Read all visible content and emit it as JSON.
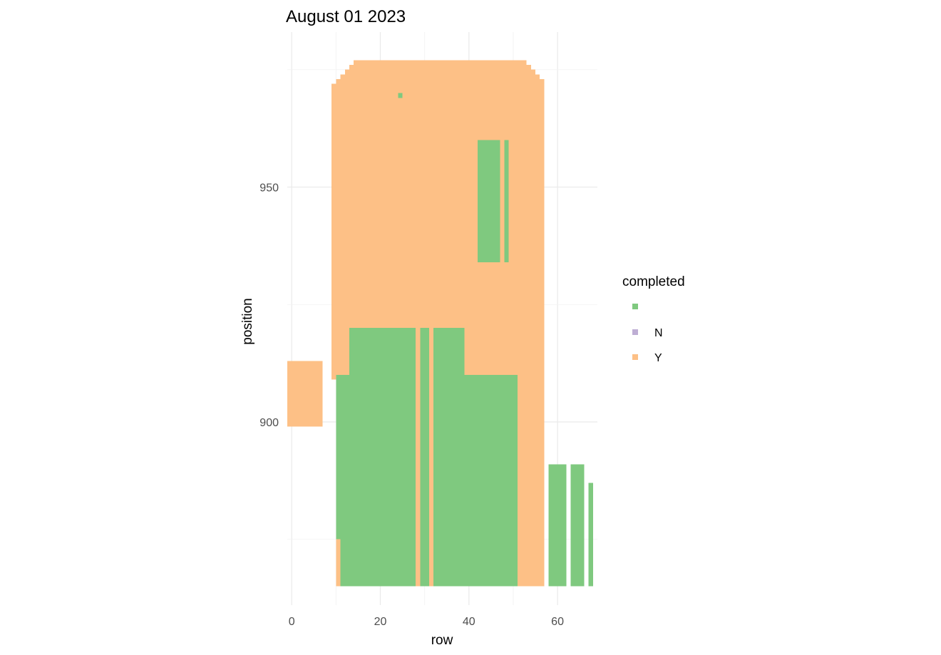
{
  "chart_data": {
    "type": "heatmap",
    "title": "August 01 2023",
    "xlabel": "row",
    "ylabel": "position",
    "xlim": [
      -1,
      69
    ],
    "ylim": [
      861,
      983
    ],
    "x_ticks": [
      0,
      20,
      40,
      60
    ],
    "y_ticks": [
      900,
      950
    ],
    "grid": true,
    "legend": {
      "title": "completed",
      "position": "right",
      "entries": [
        {
          "label": "",
          "color": "#7FC97F"
        },
        {
          "label": "N",
          "color": "#BEAED4"
        },
        {
          "label": "Y",
          "color": "#FDC086"
        }
      ]
    },
    "cells": [
      {
        "x": [
          -1,
          7
        ],
        "y": [
          899,
          913
        ],
        "completed": "Y"
      },
      {
        "x": [
          9,
          57
        ],
        "y": [
          909,
          972
        ],
        "completed": "Y"
      },
      {
        "x": [
          10,
          57
        ],
        "y": [
          972,
          973
        ],
        "completed": "Y"
      },
      {
        "x": [
          11,
          56
        ],
        "y": [
          973,
          974
        ],
        "completed": "Y"
      },
      {
        "x": [
          12,
          55
        ],
        "y": [
          974,
          975
        ],
        "completed": "Y"
      },
      {
        "x": [
          13,
          54
        ],
        "y": [
          975,
          976
        ],
        "completed": "Y"
      },
      {
        "x": [
          14,
          53
        ],
        "y": [
          976,
          977
        ],
        "completed": "Y"
      },
      {
        "x": [
          10,
          57
        ],
        "y": [
          865,
          909
        ],
        "completed": "Y"
      },
      {
        "x": [
          12,
          57
        ],
        "y": [
          865,
          875
        ],
        "completed": "Y"
      },
      {
        "x": [
          10,
          13
        ],
        "y": [
          875,
          910
        ],
        "completed": ""
      },
      {
        "x": [
          11,
          28
        ],
        "y": [
          865,
          875
        ],
        "completed": ""
      },
      {
        "x": [
          13,
          28
        ],
        "y": [
          875,
          920
        ],
        "completed": ""
      },
      {
        "x": [
          29,
          31
        ],
        "y": [
          865,
          920
        ],
        "completed": ""
      },
      {
        "x": [
          32,
          35
        ],
        "y": [
          865,
          920
        ],
        "completed": ""
      },
      {
        "x": [
          35,
          39
        ],
        "y": [
          865,
          920
        ],
        "completed": ""
      },
      {
        "x": [
          39,
          51
        ],
        "y": [
          865,
          910
        ],
        "completed": ""
      },
      {
        "x": [
          42,
          46
        ],
        "y": [
          934,
          960
        ],
        "completed": ""
      },
      {
        "x": [
          46,
          47
        ],
        "y": [
          934,
          960
        ],
        "completed": ""
      },
      {
        "x": [
          48,
          49
        ],
        "y": [
          934,
          960
        ],
        "completed": ""
      },
      {
        "x": [
          24,
          25
        ],
        "y": [
          969,
          970
        ],
        "completed": ""
      },
      {
        "x": [
          58,
          60
        ],
        "y": [
          865,
          891
        ],
        "completed": ""
      },
      {
        "x": [
          60,
          62
        ],
        "y": [
          865,
          891
        ],
        "completed": ""
      },
      {
        "x": [
          63,
          64
        ],
        "y": [
          865,
          891
        ],
        "completed": ""
      },
      {
        "x": [
          64,
          66
        ],
        "y": [
          865,
          891
        ],
        "completed": ""
      },
      {
        "x": [
          67,
          68
        ],
        "y": [
          865,
          887
        ],
        "completed": ""
      }
    ]
  }
}
